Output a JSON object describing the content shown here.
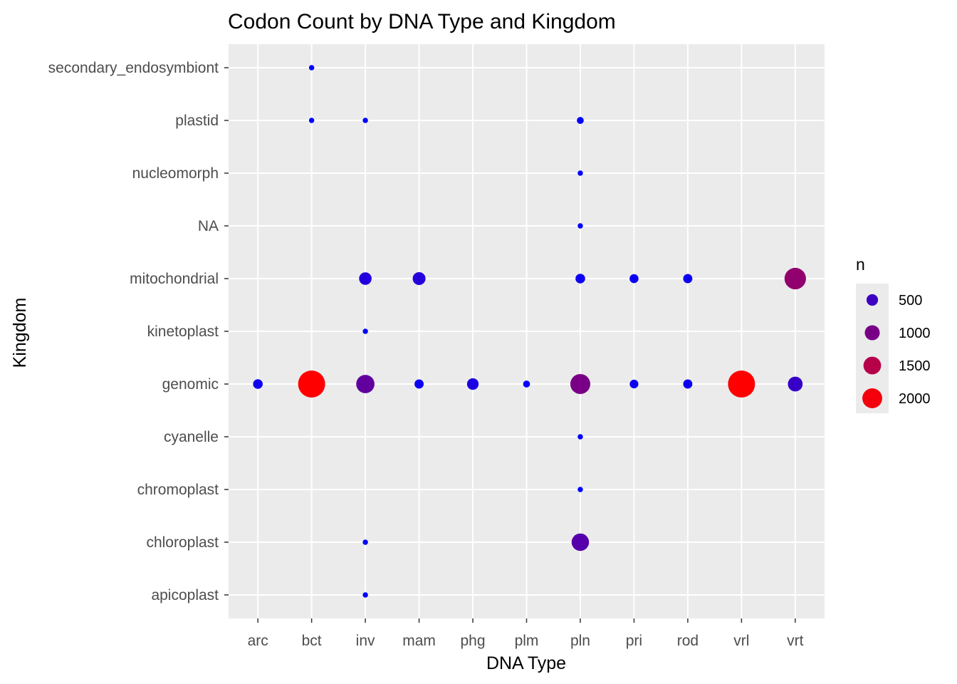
{
  "chart_data": {
    "type": "scatter",
    "title": "Codon Count by DNA Type and Kingdom",
    "xlabel": "DNA Type",
    "ylabel": "Kingdom",
    "x_categories": [
      "arc",
      "bct",
      "inv",
      "mam",
      "phg",
      "plm",
      "pln",
      "pri",
      "rod",
      "vrl",
      "vrt"
    ],
    "y_categories": [
      "apicoplast",
      "chloroplast",
      "chromoplast",
      "cyanelle",
      "genomic",
      "kinetoplast",
      "mitochondrial",
      "NA",
      "nucleomorph",
      "plastid",
      "secondary_endosymbiont"
    ],
    "size_scale": {
      "min": 1,
      "max": 2100
    },
    "color_scale": {
      "low": "#0000ff",
      "high": "#ff0000",
      "min": 1,
      "max": 2100
    },
    "grid": true,
    "legend": {
      "title": "n",
      "position": "right",
      "entries": [
        {
          "label": "500",
          "value": 500
        },
        {
          "label": "1000",
          "value": 1000
        },
        {
          "label": "1500",
          "value": 1500
        },
        {
          "label": "2000",
          "value": 2000
        }
      ]
    },
    "points": [
      {
        "x": "bct",
        "y": "secondary_endosymbiont",
        "n": 5
      },
      {
        "x": "bct",
        "y": "plastid",
        "n": 5
      },
      {
        "x": "inv",
        "y": "plastid",
        "n": 5
      },
      {
        "x": "pln",
        "y": "plastid",
        "n": 30
      },
      {
        "x": "pln",
        "y": "nucleomorph",
        "n": 5
      },
      {
        "x": "pln",
        "y": "NA",
        "n": 5
      },
      {
        "x": "inv",
        "y": "mitochondrial",
        "n": 280
      },
      {
        "x": "mam",
        "y": "mitochondrial",
        "n": 300
      },
      {
        "x": "pln",
        "y": "mitochondrial",
        "n": 120
      },
      {
        "x": "pri",
        "y": "mitochondrial",
        "n": 90
      },
      {
        "x": "rod",
        "y": "mitochondrial",
        "n": 100
      },
      {
        "x": "vrt",
        "y": "mitochondrial",
        "n": 1200
      },
      {
        "x": "inv",
        "y": "kinetoplast",
        "n": 5
      },
      {
        "x": "arc",
        "y": "genomic",
        "n": 120
      },
      {
        "x": "bct",
        "y": "genomic",
        "n": 2100
      },
      {
        "x": "inv",
        "y": "genomic",
        "n": 800
      },
      {
        "x": "mam",
        "y": "genomic",
        "n": 100
      },
      {
        "x": "phg",
        "y": "genomic",
        "n": 220
      },
      {
        "x": "plm",
        "y": "genomic",
        "n": 30
      },
      {
        "x": "pln",
        "y": "genomic",
        "n": 1000
      },
      {
        "x": "pri",
        "y": "genomic",
        "n": 80
      },
      {
        "x": "rod",
        "y": "genomic",
        "n": 100
      },
      {
        "x": "vrl",
        "y": "genomic",
        "n": 2100
      },
      {
        "x": "vrt",
        "y": "genomic",
        "n": 450
      },
      {
        "x": "pln",
        "y": "cyanelle",
        "n": 5
      },
      {
        "x": "pln",
        "y": "chromoplast",
        "n": 5
      },
      {
        "x": "inv",
        "y": "chloroplast",
        "n": 5
      },
      {
        "x": "pln",
        "y": "chloroplast",
        "n": 700
      },
      {
        "x": "inv",
        "y": "apicoplast",
        "n": 5
      }
    ]
  }
}
